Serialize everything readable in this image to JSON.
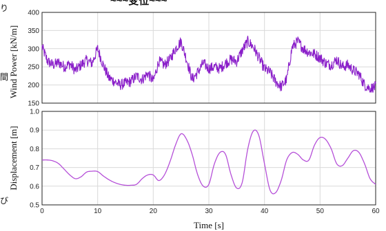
{
  "page": {
    "cropped_caption": "~~~变位~~~",
    "left_edge_chars": [
      "り",
      "間",
      "び"
    ]
  },
  "chart_data": [
    {
      "type": "line",
      "ylabel": "Wind Power [kN/m]",
      "xlim": [
        0,
        60
      ],
      "ylim": [
        150,
        400
      ],
      "yticks": [
        150,
        200,
        250,
        300,
        350,
        400
      ],
      "xticks": [
        0,
        10,
        20,
        30,
        40,
        50,
        60
      ],
      "grid": true,
      "series": [
        {
          "color": "#8a1fc9",
          "x": [
            0,
            1,
            2,
            3,
            4,
            5,
            6,
            7,
            8,
            9,
            10,
            11,
            12,
            13,
            14,
            15,
            16,
            17,
            18,
            19,
            20,
            21,
            22,
            23,
            24,
            25,
            26,
            27,
            28,
            29,
            30,
            31,
            32,
            33,
            34,
            35,
            36,
            37,
            38,
            39,
            40,
            41,
            42,
            43,
            44,
            45,
            46,
            47,
            48,
            49,
            50,
            51,
            52,
            53,
            54,
            55,
            56,
            57,
            58,
            59,
            60
          ],
          "values": [
            305,
            265,
            255,
            262,
            250,
            258,
            240,
            255,
            268,
            260,
            300,
            255,
            220,
            210,
            200,
            205,
            210,
            225,
            215,
            232,
            210,
            265,
            255,
            270,
            300,
            320,
            270,
            215,
            235,
            260,
            245,
            250,
            245,
            260,
            270,
            265,
            295,
            320,
            305,
            275,
            245,
            235,
            210,
            195,
            215,
            305,
            320,
            300,
            290,
            285,
            275,
            260,
            255,
            270,
            250,
            255,
            240,
            230,
            200,
            190,
            195
          ]
        }
      ]
    },
    {
      "type": "line",
      "xlabel": "Time [s]",
      "ylabel": "Displacement [m]",
      "xlim": [
        0,
        60
      ],
      "ylim": [
        0.5,
        1.0
      ],
      "yticks": [
        0.5,
        0.6,
        0.7,
        0.8,
        0.9,
        1.0
      ],
      "xticks": [
        0,
        10,
        20,
        30,
        40,
        50,
        60
      ],
      "grid": true,
      "series": [
        {
          "color": "#b54fd8",
          "x": [
            0,
            1,
            2,
            3,
            4,
            5,
            6,
            7,
            8,
            9,
            10,
            11,
            12,
            13,
            14,
            15,
            16,
            17,
            18,
            19,
            20,
            21,
            22,
            23,
            24,
            25,
            26,
            27,
            28,
            29,
            30,
            31,
            32,
            33,
            34,
            35,
            36,
            37,
            38,
            39,
            40,
            41,
            42,
            43,
            44,
            45,
            46,
            47,
            48,
            49,
            50,
            51,
            52,
            53,
            54,
            55,
            56,
            57,
            58,
            59,
            60
          ],
          "values": [
            0.74,
            0.74,
            0.735,
            0.72,
            0.69,
            0.66,
            0.64,
            0.65,
            0.675,
            0.68,
            0.678,
            0.655,
            0.635,
            0.62,
            0.61,
            0.605,
            0.605,
            0.61,
            0.64,
            0.66,
            0.66,
            0.63,
            0.66,
            0.73,
            0.82,
            0.88,
            0.85,
            0.77,
            0.66,
            0.6,
            0.61,
            0.72,
            0.78,
            0.77,
            0.66,
            0.59,
            0.62,
            0.8,
            0.895,
            0.87,
            0.72,
            0.58,
            0.565,
            0.63,
            0.74,
            0.78,
            0.77,
            0.74,
            0.74,
            0.82,
            0.86,
            0.85,
            0.8,
            0.72,
            0.71,
            0.75,
            0.79,
            0.78,
            0.72,
            0.64,
            0.61
          ]
        }
      ]
    }
  ]
}
